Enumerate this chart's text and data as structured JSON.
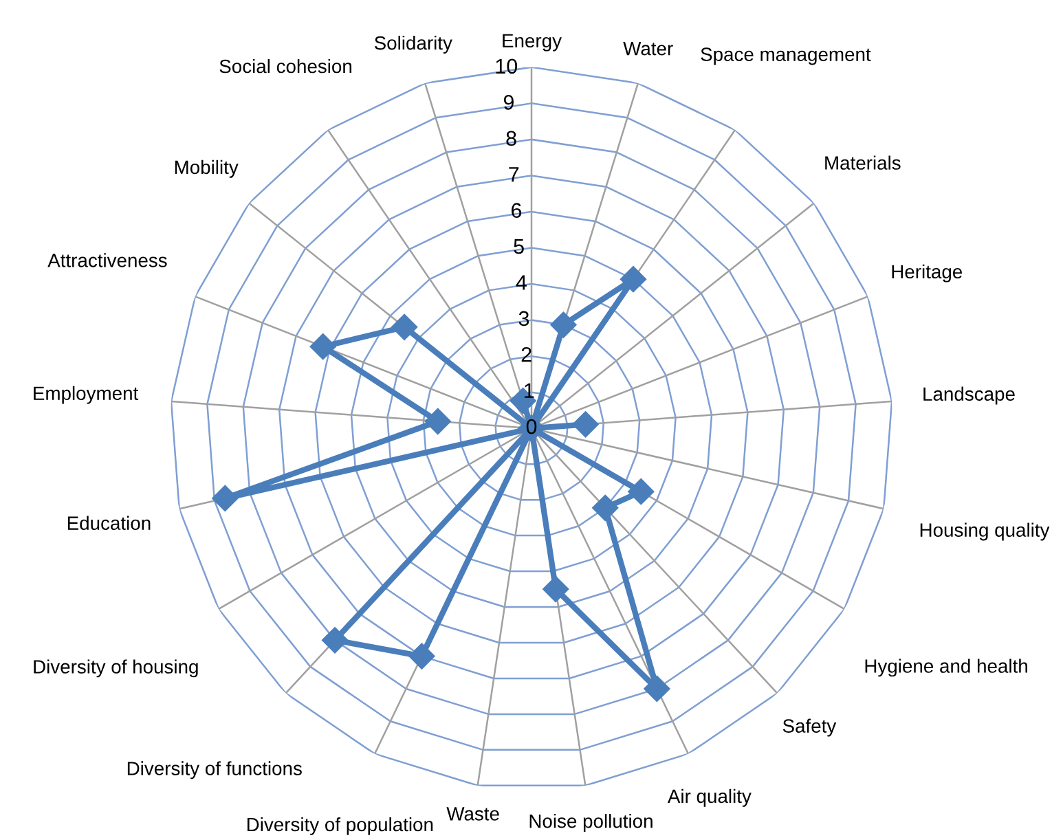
{
  "chart_data": {
    "type": "radar",
    "categories": [
      "Energy",
      "Water",
      "Space management",
      "Materials",
      "Heritage",
      "Landscape",
      "Housing quality",
      "Hygiene and health",
      "Safety",
      "Air quality",
      "Noise pollution",
      "Waste",
      "Diversity of population",
      "Diversity of functions",
      "Diversity of housing",
      "Education",
      "Employment",
      "Attractiveness",
      "Mobility",
      "Social cohesion",
      "Solidarity"
    ],
    "series": [
      {
        "color": "#4a7ebb",
        "values": [
          0,
          3,
          5,
          0,
          0,
          1.5,
          0,
          3.5,
          3,
          8,
          4.5,
          0,
          7,
          8,
          0,
          8.7,
          2.6,
          6.2,
          4.5,
          0,
          0.8
        ]
      }
    ],
    "ylim": [
      0,
      10
    ],
    "yticks": [
      0,
      1,
      2,
      3,
      4,
      5,
      6,
      7,
      8,
      9,
      10
    ],
    "grid": true,
    "legend": false,
    "marker": "diamond",
    "line_style": "solid"
  }
}
